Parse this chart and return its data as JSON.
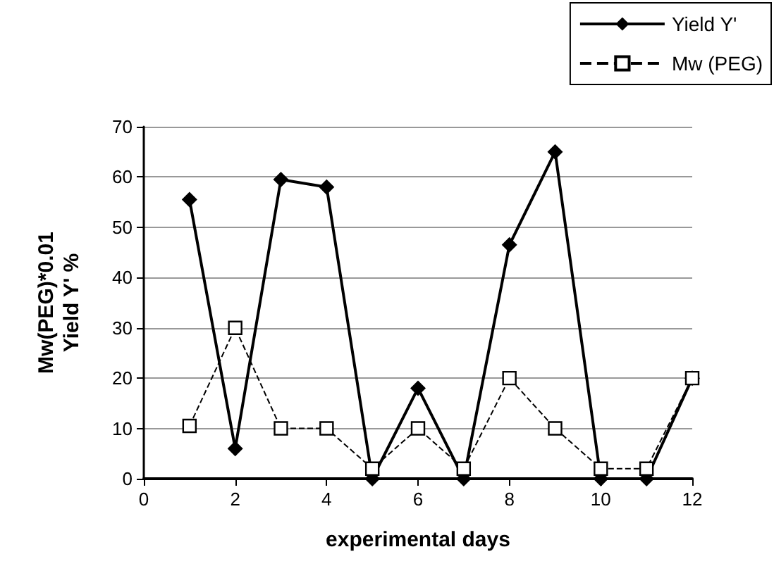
{
  "chart_data": {
    "type": "line",
    "xlabel": "experimental days",
    "ylabel": "Mw(PEG)*0.01\nYield Y' %",
    "x": [
      1,
      2,
      3,
      4,
      5,
      6,
      7,
      8,
      9,
      10,
      11,
      12
    ],
    "series": [
      {
        "name": "Yield Y'",
        "color": "#000000",
        "marker": "diamond",
        "line_style": "solid",
        "values": [
          55.5,
          6,
          59.5,
          58,
          0,
          18,
          0,
          46.5,
          65,
          0,
          0,
          20
        ]
      },
      {
        "name": "Mw (PEG)",
        "color": "#000000",
        "marker": "square",
        "line_style": "dashed",
        "values": [
          10.5,
          30,
          10,
          10,
          2,
          10,
          2,
          20,
          10,
          2,
          2,
          20
        ]
      }
    ],
    "xlim": [
      0,
      12
    ],
    "xticks": [
      0,
      2,
      4,
      6,
      8,
      10,
      12
    ],
    "ylim": [
      0,
      70
    ],
    "yticks": [
      0,
      10,
      20,
      30,
      40,
      50,
      60,
      70
    ],
    "grid": "y",
    "legend": "top right"
  }
}
